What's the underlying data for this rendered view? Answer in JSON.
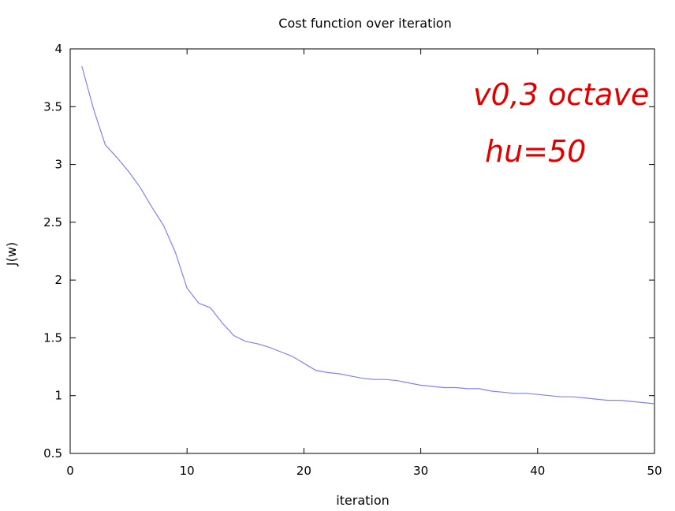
{
  "chart_data": {
    "type": "line",
    "title": "Cost function over iteration",
    "xlabel": "iteration",
    "ylabel": "J(w)",
    "xlim": [
      0,
      50
    ],
    "ylim": [
      0.5,
      4
    ],
    "xticks": [
      0,
      10,
      20,
      30,
      40,
      50
    ],
    "yticks": [
      0.5,
      1,
      1.5,
      2,
      2.5,
      3,
      3.5,
      4
    ],
    "grid": false,
    "colors": {
      "line": "#8080ff",
      "annotation": "#e00000"
    },
    "series": [
      {
        "x": [
          1,
          2,
          3,
          4,
          5,
          6,
          7,
          8,
          9,
          10,
          11,
          12,
          13,
          14,
          15,
          16,
          17,
          18,
          19,
          20,
          21,
          22,
          23,
          24,
          25,
          26,
          27,
          28,
          29,
          30,
          31,
          32,
          33,
          34,
          35,
          36,
          37,
          38,
          39,
          40,
          41,
          42,
          43,
          44,
          45,
          46,
          47,
          48,
          49,
          50
        ],
        "y": [
          3.85,
          3.48,
          3.17,
          3.06,
          2.94,
          2.8,
          2.63,
          2.47,
          2.24,
          1.93,
          1.8,
          1.76,
          1.63,
          1.52,
          1.47,
          1.45,
          1.42,
          1.38,
          1.34,
          1.28,
          1.22,
          1.2,
          1.19,
          1.17,
          1.15,
          1.14,
          1.14,
          1.13,
          1.11,
          1.09,
          1.08,
          1.07,
          1.07,
          1.06,
          1.06,
          1.04,
          1.03,
          1.02,
          1.02,
          1.01,
          1.0,
          0.99,
          0.99,
          0.98,
          0.97,
          0.96,
          0.96,
          0.95,
          0.94,
          0.93
        ]
      }
    ],
    "annotations": [
      "v0,3 octave",
      "hu=50"
    ]
  }
}
